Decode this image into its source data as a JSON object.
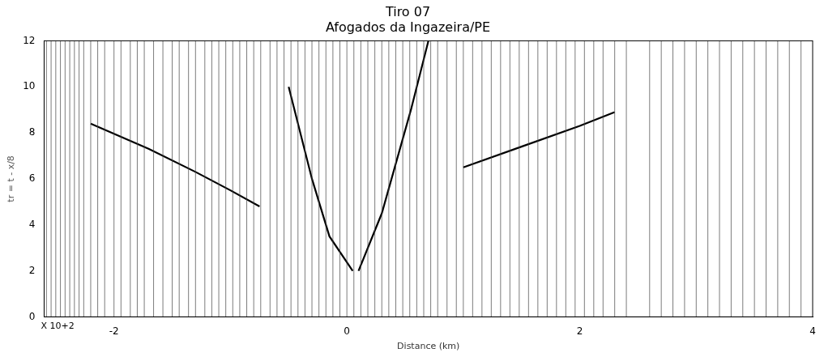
{
  "chart_data": {
    "type": "line",
    "title": [
      "Tiro 07",
      "Afogados da Ingazeira/PE"
    ],
    "x_label": "Distance (km)",
    "y_label": "tr = t - x/8",
    "annotation": "X 10+2",
    "xlim": [
      -2.6,
      4
    ],
    "xticks": [
      -2,
      0,
      2,
      4
    ],
    "ylim": [
      0,
      12
    ],
    "yticks": [
      0,
      2,
      4,
      6,
      8,
      10,
      12
    ],
    "grid": false,
    "traces": {
      "color": "#444444",
      "x": [
        -2.58,
        -2.54,
        -2.5,
        -2.46,
        -2.42,
        -2.38,
        -2.34,
        -2.3,
        -2.26,
        -2.2,
        -2.14,
        -2.08,
        -2.0,
        -1.94,
        -1.86,
        -1.8,
        -1.74,
        -1.66,
        -1.58,
        -1.5,
        -1.44,
        -1.36,
        -1.3,
        -1.22,
        -1.16,
        -1.1,
        -1.04,
        -0.98,
        -0.92,
        -0.86,
        -0.8,
        -0.74,
        -0.66,
        -0.6,
        -0.54,
        -0.48,
        -0.42,
        -0.36,
        -0.3,
        -0.24,
        -0.18,
        -0.12,
        -0.06,
        0.0,
        0.06,
        0.12,
        0.18,
        0.24,
        0.3,
        0.36,
        0.42,
        0.48,
        0.54,
        0.6,
        0.66,
        0.72,
        0.78,
        0.86,
        0.94,
        1.0,
        1.08,
        1.16,
        1.24,
        1.32,
        1.4,
        1.48,
        1.56,
        1.64,
        1.72,
        1.8,
        1.88,
        1.96,
        2.04,
        2.12,
        2.2,
        2.3,
        2.4,
        2.6,
        2.7,
        2.8,
        2.9,
        3.0,
        3.1,
        3.2,
        3.3,
        3.4,
        3.5,
        3.6,
        3.7,
        3.8,
        3.9
      ]
    },
    "series": [
      {
        "color": "#000000",
        "x": [
          -0.75,
          -1.0,
          -1.3,
          -1.7,
          -2.2
        ],
        "values": [
          4.8,
          5.5,
          6.3,
          7.3,
          8.4
        ]
      },
      {
        "color": "#000000",
        "x": [
          1.0,
          1.5,
          2.0,
          2.3
        ],
        "values": [
          6.5,
          7.4,
          8.3,
          8.9
        ]
      },
      {
        "color": "#000000",
        "x": [
          0.05,
          -0.15,
          -0.3,
          -0.5
        ],
        "values": [
          2.0,
          3.5,
          6.0,
          10.0
        ]
      },
      {
        "color": "#000000",
        "x": [
          0.1,
          0.3,
          0.55,
          0.7
        ],
        "values": [
          2.0,
          4.5,
          9.0,
          12.0
        ]
      }
    ]
  }
}
